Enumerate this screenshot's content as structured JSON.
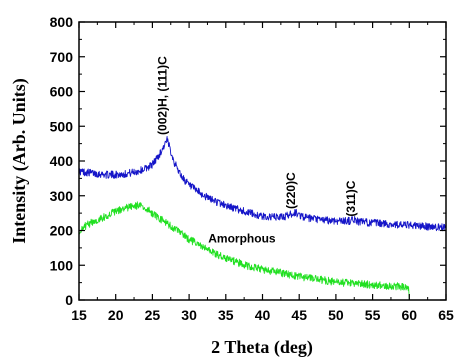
{
  "chart_data": {
    "type": "line",
    "title": "",
    "xlabel": "2 Theta (deg)",
    "ylabel": "Intensity (Arb. Units)",
    "xlim": [
      15,
      65
    ],
    "ylim": [
      0,
      800
    ],
    "xticks": [
      15,
      20,
      25,
      30,
      35,
      40,
      45,
      50,
      55,
      60,
      65
    ],
    "yticks": [
      0,
      100,
      200,
      300,
      400,
      500,
      600,
      700,
      800
    ],
    "grid": false,
    "legend": "none",
    "series": [
      {
        "color": "#1515c8",
        "x": [
          15,
          17,
          19,
          21,
          23,
          24,
          25,
          26,
          26.5,
          27,
          27.5,
          28,
          29,
          30,
          32,
          34,
          36,
          38,
          40,
          42,
          43,
          44,
          44.5,
          45,
          46,
          48,
          50,
          52,
          52.5,
          53,
          55,
          58,
          60,
          62,
          65
        ],
        "y": [
          370,
          365,
          360,
          362,
          370,
          378,
          390,
          420,
          440,
          460,
          430,
          395,
          355,
          330,
          300,
          280,
          265,
          252,
          240,
          238,
          240,
          248,
          252,
          245,
          236,
          230,
          228,
          228,
          232,
          226,
          222,
          217,
          215,
          212,
          208
        ]
      },
      {
        "color": "#22e022",
        "x": [
          15,
          16,
          18,
          20,
          22,
          23,
          24,
          25,
          26,
          28,
          30,
          32,
          35,
          38,
          40,
          42,
          45,
          48,
          50,
          52,
          55,
          58,
          59.9,
          60
        ],
        "y": [
          200,
          215,
          235,
          255,
          268,
          272,
          265,
          250,
          235,
          205,
          175,
          150,
          120,
          98,
          88,
          80,
          68,
          58,
          52,
          48,
          44,
          40,
          38,
          0
        ]
      }
    ],
    "annotations": [
      {
        "text": "(002)H, (111)C",
        "x": 26.9,
        "y": 475,
        "rotate": -90
      },
      {
        "text": "(220)C",
        "x": 44.4,
        "y": 262,
        "rotate": -90
      },
      {
        "text": "(311)C",
        "x": 52.6,
        "y": 240,
        "rotate": -90
      },
      {
        "text": "Amorphous",
        "x": 37.2,
        "y": 165,
        "rotate": 0
      }
    ]
  }
}
